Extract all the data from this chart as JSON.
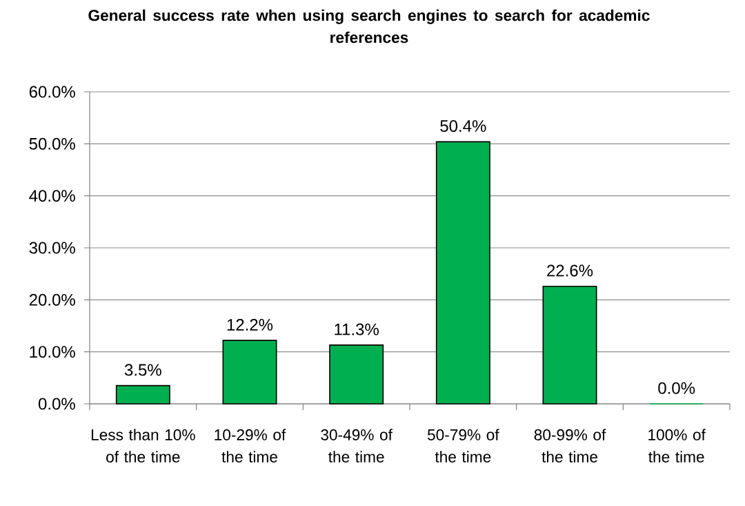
{
  "chart_data": {
    "type": "bar",
    "title": "General success rate when using search engines to search for academic references",
    "categories": [
      "Less than 10% of the time",
      "10-29% of the time",
      "30-49% of the time",
      "50-79% of the time",
      "80-99% of the time",
      "100% of the time"
    ],
    "values": [
      3.5,
      12.2,
      11.3,
      50.4,
      22.6,
      0.0
    ],
    "value_labels": [
      "3.5%",
      "12.2%",
      "11.3%",
      "50.4%",
      "22.6%",
      "0.0%"
    ],
    "color": "#00b050",
    "ylim": [
      0,
      60
    ],
    "yticks": [
      {
        "value": 0,
        "label": "0.0%"
      },
      {
        "value": 10,
        "label": "10.0%"
      },
      {
        "value": 20,
        "label": "20.0%"
      },
      {
        "value": 30,
        "label": "30.0%"
      },
      {
        "value": 40,
        "label": "40.0%"
      },
      {
        "value": 50,
        "label": "50.0%"
      },
      {
        "value": 60,
        "label": "60.0%"
      }
    ],
    "grid": "y"
  }
}
